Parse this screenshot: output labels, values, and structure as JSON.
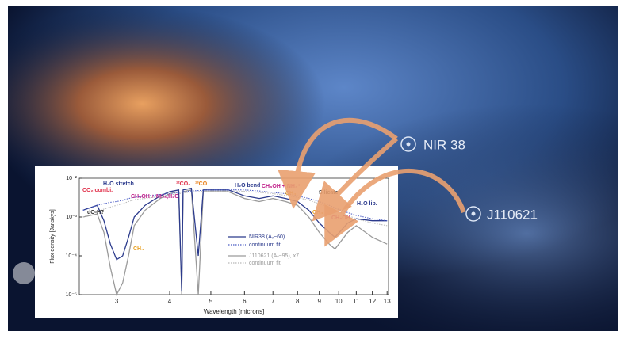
{
  "chart_data": {
    "type": "line",
    "xlabel": "Wavelength [microns]",
    "ylabel": "Flux density [Janskys]",
    "xscale": "log",
    "yscale": "log",
    "xlim": [
      2.45,
      13.1
    ],
    "xticks": [
      3,
      4,
      5,
      6,
      7,
      8,
      9,
      10,
      11,
      12,
      13
    ],
    "ylim": [
      1e-05,
      0.01
    ],
    "yticks": [
      {
        "value": 0.01,
        "label": "10⁻²"
      },
      {
        "value": 0.001,
        "label": "10⁻³"
      },
      {
        "value": 0.0001,
        "label": "10⁻⁴"
      },
      {
        "value": 1e-05,
        "label": "10⁻⁵"
      }
    ],
    "x": [
      2.5,
      2.7,
      2.8,
      2.9,
      3.0,
      3.1,
      3.2,
      3.3,
      3.5,
      3.8,
      4.0,
      4.2,
      4.27,
      4.3,
      4.5,
      4.67,
      4.8,
      5.0,
      5.5,
      6.0,
      6.5,
      7.0,
      7.5,
      8.0,
      8.5,
      9.0,
      9.5,
      9.8,
      10.5,
      11,
      12,
      13
    ],
    "series": [
      {
        "name": "NIR38 (Aᵥ~60)",
        "color": "#2b3a8c",
        "style": "solid",
        "values": [
          0.0015,
          0.002,
          0.0008,
          0.0002,
          8e-05,
          0.0001,
          0.0003,
          0.001,
          0.002,
          0.0035,
          0.0045,
          0.005,
          1.2e-05,
          0.005,
          0.0055,
          0.0001,
          0.005,
          0.005,
          0.005,
          0.0035,
          0.003,
          0.0035,
          0.003,
          0.0025,
          0.0015,
          0.0007,
          0.0004,
          0.0003,
          0.0007,
          0.0009,
          0.0008,
          0.0008
        ]
      },
      {
        "name": "continuum fit",
        "color": "#4a5cc4",
        "style": "dotted",
        "values": [
          0.0015,
          0.002,
          0.0022,
          0.0024,
          0.0025,
          0.0027,
          0.003,
          0.0032,
          0.0035,
          0.0038,
          0.004,
          0.0043,
          0.0044,
          0.0045,
          0.0047,
          0.0048,
          0.0049,
          0.005,
          0.005,
          0.005,
          0.0047,
          0.0043,
          0.004,
          0.0035,
          0.003,
          0.0025,
          0.002,
          0.0017,
          0.0013,
          0.0011,
          0.0009,
          0.0008
        ]
      },
      {
        "name": "J110621 (Aᵥ~95), x7",
        "color": "#9a9a9a",
        "style": "solid",
        "values": [
          0.001,
          0.0012,
          0.0004,
          5e-05,
          1e-05,
          2e-05,
          0.0001,
          0.0006,
          0.0015,
          0.003,
          0.004,
          0.0045,
          1e-05,
          0.0045,
          0.005,
          1e-05,
          0.0045,
          0.0045,
          0.0045,
          0.003,
          0.0025,
          0.003,
          0.0025,
          0.002,
          0.001,
          0.0004,
          0.0002,
          0.00015,
          0.0004,
          0.0006,
          0.0003,
          0.0002
        ]
      },
      {
        "name": "continuum fit",
        "color": "#b8b8b8",
        "style": "dotted",
        "values": [
          0.001,
          0.0014,
          0.0016,
          0.0018,
          0.002,
          0.0022,
          0.0025,
          0.0028,
          0.003,
          0.0034,
          0.0037,
          0.004,
          0.0041,
          0.0042,
          0.0044,
          0.0045,
          0.0046,
          0.0047,
          0.0047,
          0.0046,
          0.0043,
          0.004,
          0.0036,
          0.0032,
          0.0027,
          0.0022,
          0.0018,
          0.0015,
          0.0011,
          0.0009,
          0.0007,
          0.0006
        ]
      }
    ],
    "annotations": [
      {
        "text": "H₂O stretch",
        "color": "#2b3a8c"
      },
      {
        "text": "CO₂ combi.",
        "color": "#e0304a"
      },
      {
        "text": "dO-H?",
        "color": "#333333"
      },
      {
        "text": "CH₃OH + NH₃,H₂O",
        "color": "#c0208a"
      },
      {
        "text": "CH₄",
        "color": "#e8a020"
      },
      {
        "text": "¹²CO₂",
        "color": "#e0304a"
      },
      {
        "text": "¹³CO",
        "color": "#e8801a"
      },
      {
        "text": "H₂O bend",
        "color": "#2b3a8c"
      },
      {
        "text": "CH₃OH + NH₄⁺",
        "color": "#c0208a"
      },
      {
        "text": "CH₄",
        "color": "#e8a020"
      },
      {
        "text": "Silicate",
        "color": "#222222"
      },
      {
        "text": "H₂O lib.",
        "color": "#2b3a8c"
      },
      {
        "text": "CH₃OH",
        "color": "#c0208a"
      },
      {
        "text": "CH₄",
        "color": "#e8a020"
      }
    ]
  },
  "image_labels": [
    "NIR 38",
    "J110621"
  ]
}
